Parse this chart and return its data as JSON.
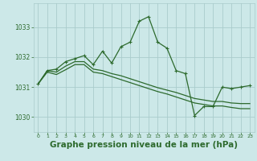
{
  "bg_color": "#cce8e8",
  "grid_color": "#aacccc",
  "line_color": "#2d6a2d",
  "title": "Graphe pression niveau de la mer (hPa)",
  "title_fontsize": 7.5,
  "xlim": [
    -0.5,
    23.5
  ],
  "ylim": [
    1029.5,
    1033.8
  ],
  "yticks": [
    1030,
    1031,
    1032,
    1033
  ],
  "ytick_labels": [
    "1030",
    "1031",
    "1032",
    "1033"
  ],
  "xticks": [
    0,
    1,
    2,
    3,
    4,
    5,
    6,
    7,
    8,
    9,
    10,
    11,
    12,
    13,
    14,
    15,
    16,
    17,
    18,
    19,
    20,
    21,
    22,
    23
  ],
  "xtick_labels": [
    "0",
    "1",
    "2",
    "3",
    "4",
    "5",
    "6",
    "7",
    "8",
    "9",
    "10",
    "11",
    "12",
    "13",
    "14",
    "15",
    "16",
    "17",
    "18",
    "19",
    "20",
    "21",
    "22",
    "23"
  ],
  "series1": {
    "x": [
      0,
      1,
      2,
      3,
      4,
      5,
      6,
      7,
      8,
      9,
      10,
      11,
      12,
      13,
      14,
      15,
      16,
      17,
      18,
      19,
      20,
      21,
      22,
      23
    ],
    "y": [
      1031.1,
      1031.55,
      1031.6,
      1031.85,
      1031.95,
      1032.05,
      1031.75,
      1032.2,
      1031.8,
      1032.35,
      1032.5,
      1033.2,
      1033.35,
      1032.5,
      1032.3,
      1031.55,
      1031.45,
      1030.05,
      1030.35,
      1030.35,
      1031.0,
      1030.95,
      1031.0,
      1031.05
    ]
  },
  "series2": {
    "x": [
      0,
      1,
      2,
      3,
      4,
      5,
      6,
      7,
      8,
      9,
      10,
      11,
      12,
      13,
      14,
      15,
      16,
      17,
      18,
      19,
      20,
      21,
      22,
      23
    ],
    "y": [
      1031.1,
      1031.55,
      1031.5,
      1031.7,
      1031.85,
      1031.85,
      1031.6,
      1031.55,
      1031.45,
      1031.38,
      1031.28,
      1031.18,
      1031.08,
      1030.98,
      1030.9,
      1030.82,
      1030.72,
      1030.62,
      1030.57,
      1030.52,
      1030.52,
      1030.47,
      1030.45,
      1030.45
    ]
  },
  "series3": {
    "x": [
      0,
      1,
      2,
      3,
      4,
      5,
      6,
      7,
      8,
      9,
      10,
      11,
      12,
      13,
      14,
      15,
      16,
      17,
      18,
      19,
      20,
      21,
      22,
      23
    ],
    "y": [
      1031.1,
      1031.5,
      1031.42,
      1031.58,
      1031.75,
      1031.75,
      1031.5,
      1031.45,
      1031.35,
      1031.25,
      1031.15,
      1031.05,
      1030.95,
      1030.85,
      1030.77,
      1030.67,
      1030.57,
      1030.47,
      1030.42,
      1030.37,
      1030.37,
      1030.32,
      1030.28,
      1030.28
    ]
  }
}
